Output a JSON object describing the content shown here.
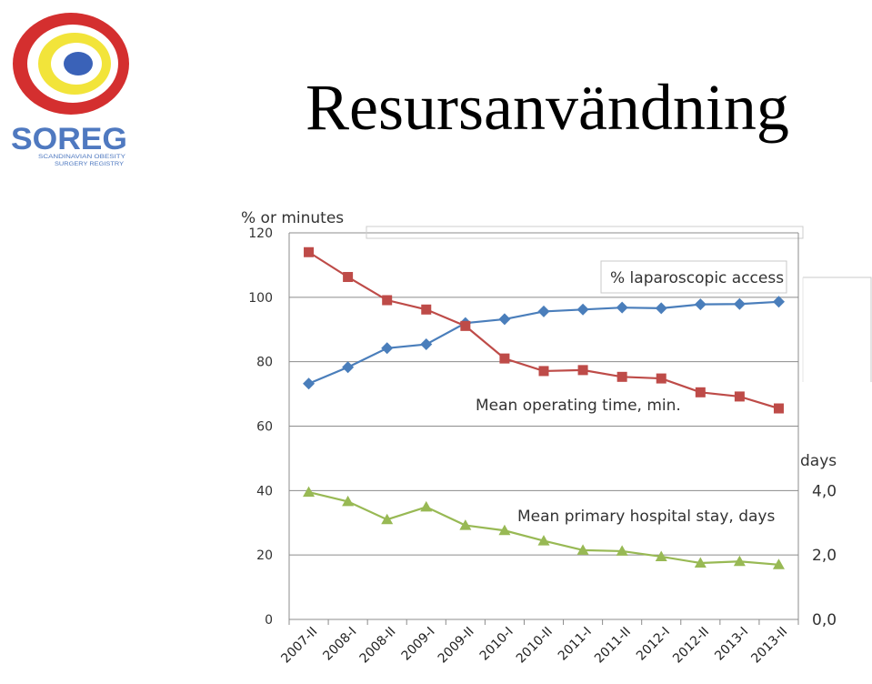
{
  "slide": {
    "title": "Resursanvändning",
    "logo": {
      "text": "SOREG",
      "subtext_line1": "SCANDINAVIAN OBESITY",
      "subtext_line2": "SURGERY REGISTRY",
      "colors": {
        "red": "#d42f2f",
        "yellow": "#f2e43a",
        "blue": "#3a62b8",
        "text": "#4f79c0"
      }
    }
  },
  "chart_data": {
    "type": "line",
    "categories": [
      "2007-II",
      "2008-I",
      "2008-II",
      "2009-I",
      "2009-II",
      "2010-I",
      "2010-II",
      "2011-I",
      "2011-II",
      "2012-I",
      "2012-II",
      "2013-I",
      "2013-II"
    ],
    "ylabel": "% or minutes",
    "ylim": [
      0,
      120
    ],
    "yticks": [
      0,
      20,
      40,
      60,
      80,
      100,
      120
    ],
    "y2label": "days",
    "y2ticks": [
      "0,0",
      "2,0",
      "4,0"
    ],
    "y2ticks_at_left_value": [
      0,
      20,
      40
    ],
    "grid": true,
    "series": [
      {
        "name": "% laparoscopic access",
        "color": "#4a7ebb",
        "marker": "diamond",
        "values": [
          73.2,
          78.3,
          84.2,
          85.4,
          92.0,
          93.2,
          95.6,
          96.2,
          96.8,
          96.6,
          97.8,
          97.9,
          98.6
        ]
      },
      {
        "name": "Mean operating time, min.",
        "color": "#be4b48",
        "marker": "square",
        "values": [
          114.0,
          106.3,
          99.1,
          96.2,
          91.1,
          81.0,
          77.1,
          77.4,
          75.3,
          74.8,
          70.5,
          69.2,
          65.5
        ]
      },
      {
        "name": "Mean primary hospital stay, days",
        "color": "#98b954",
        "marker": "triangle",
        "values": [
          39.5,
          36.6,
          31.0,
          34.9,
          29.2,
          27.6,
          24.4,
          21.5,
          21.2,
          19.5,
          17.5,
          18.0,
          17.0
        ]
      }
    ]
  }
}
